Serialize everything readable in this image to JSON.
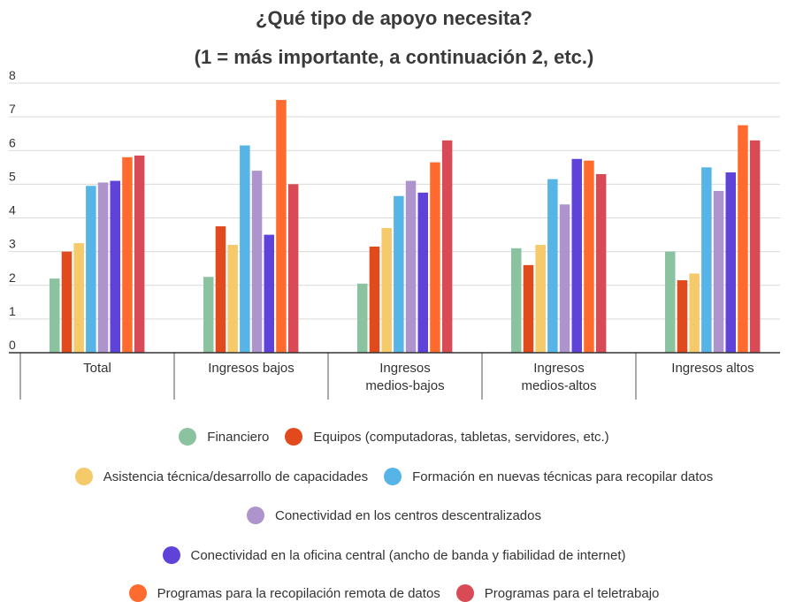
{
  "chart_data": {
    "type": "bar",
    "title": "¿Qué tipo de apoyo necesita?",
    "subtitle": "(1 = más importante, a continuación 2, etc.)",
    "ylim": [
      0,
      8
    ],
    "yticks": [
      "0",
      "1",
      "2",
      "3",
      "4",
      "5",
      "6",
      "7",
      "8"
    ],
    "grid": true,
    "legend_position": "bottom",
    "categories": [
      [
        "Total"
      ],
      [
        "Ingresos bajos"
      ],
      [
        "Ingresos",
        "medios-bajos"
      ],
      [
        "Ingresos",
        "medios-altos"
      ],
      [
        "Ingresos altos"
      ]
    ],
    "series": [
      {
        "name": "Financiero",
        "color": "#8bc29f",
        "values": [
          2.2,
          2.25,
          2.05,
          3.1,
          3.0
        ]
      },
      {
        "name": "Equipos (computadoras, tabletas, servidores, etc.)",
        "color": "#e04a1c",
        "values": [
          3.0,
          3.75,
          3.15,
          2.6,
          2.15
        ]
      },
      {
        "name": "Asistencia técnica/desarrollo de capacidades",
        "color": "#f4ca6a",
        "values": [
          3.25,
          3.2,
          3.7,
          3.2,
          2.35
        ]
      },
      {
        "name": "Formación en nuevas técnicas para recopilar datos",
        "color": "#56b4e6",
        "values": [
          4.95,
          6.15,
          4.65,
          5.15,
          5.5
        ]
      },
      {
        "name": "Conectividad en los centros descentralizados",
        "color": "#ae94cc",
        "values": [
          5.05,
          5.4,
          5.1,
          4.4,
          4.8
        ]
      },
      {
        "name": "Conectividad en la oficina central (ancho de banda y fiabilidad de internet)",
        "color": "#5f42d8",
        "values": [
          5.1,
          3.5,
          4.75,
          5.75,
          5.35
        ]
      },
      {
        "name": "Programas para la recopilación remota de datos",
        "color": "#ff6a2f",
        "values": [
          5.8,
          7.5,
          5.65,
          5.7,
          6.75
        ]
      },
      {
        "name": "Programas para el teletrabajo",
        "color": "#d84a55",
        "values": [
          5.85,
          5.0,
          6.3,
          5.3,
          6.3
        ]
      }
    ]
  }
}
